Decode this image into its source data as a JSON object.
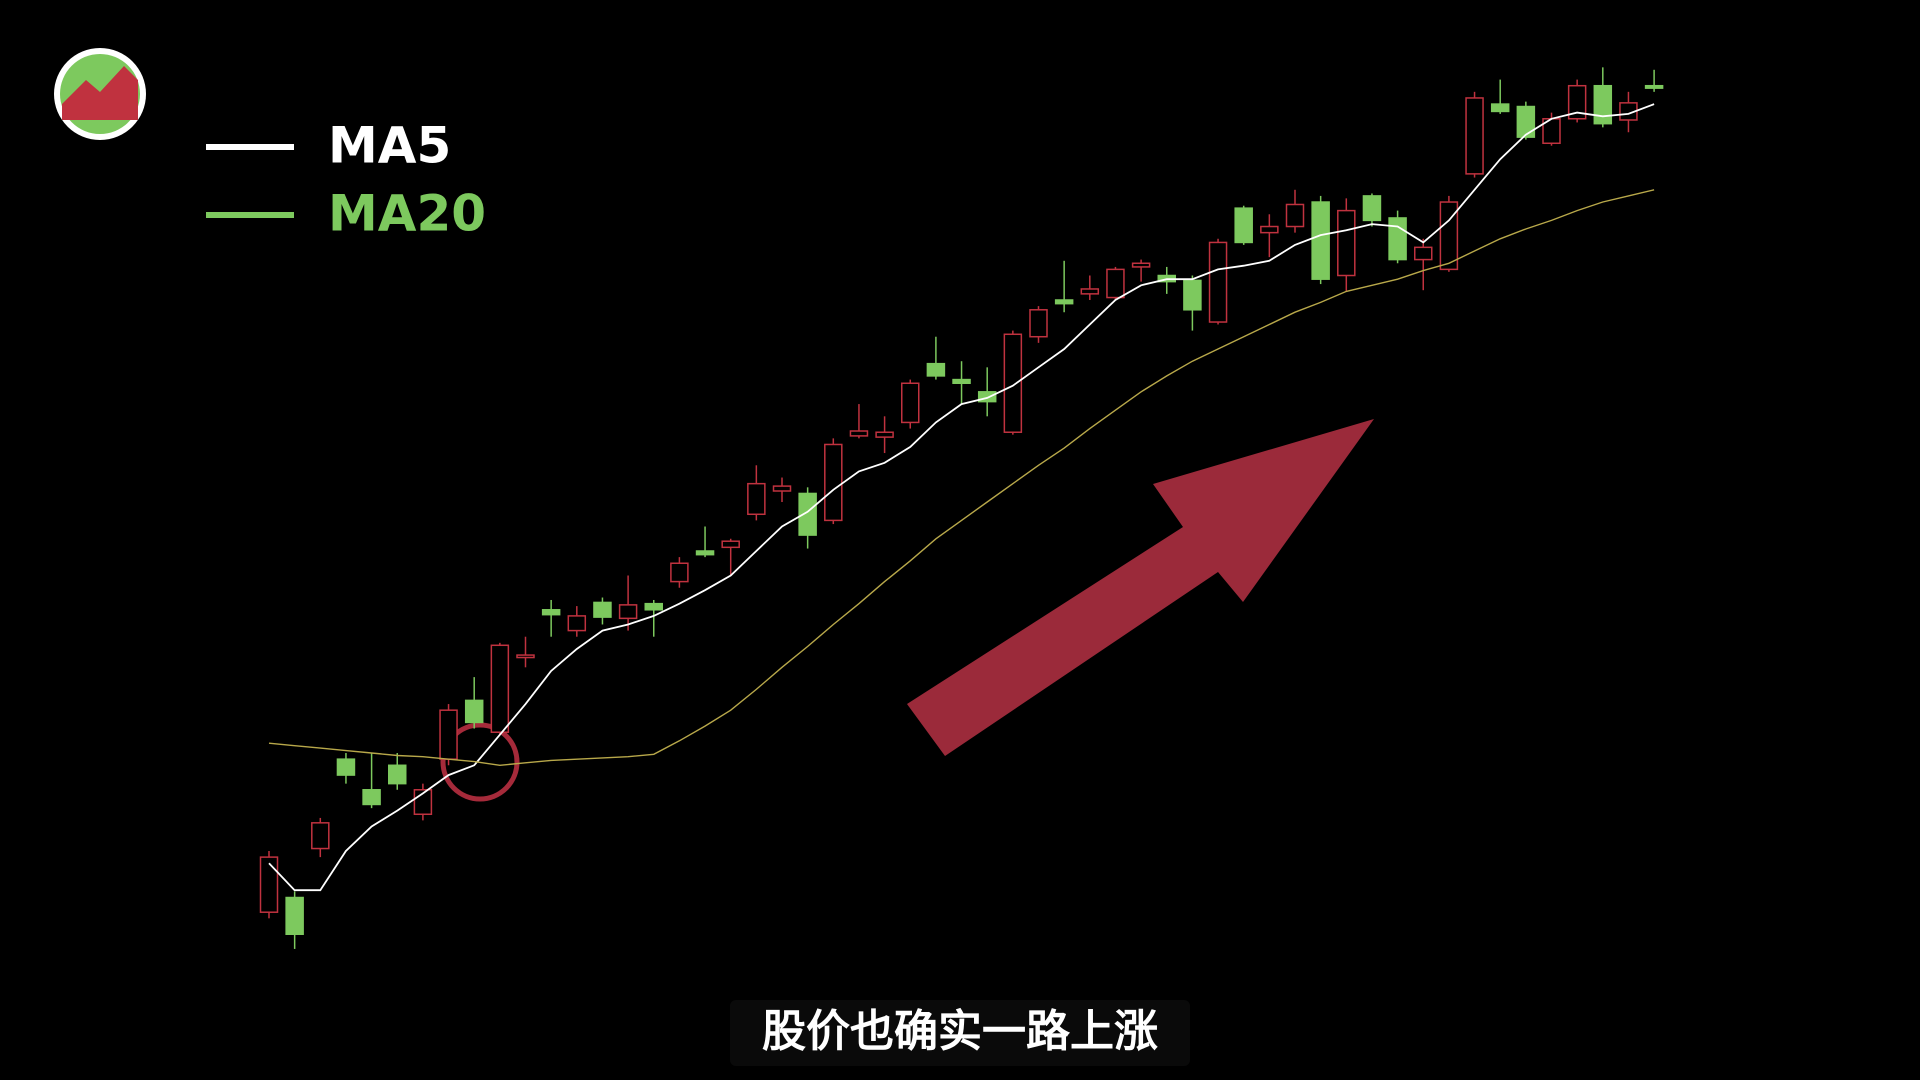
{
  "chart_data": {
    "type": "candlestick",
    "subtitle": "股价也确实一路上涨",
    "legend": "upper left",
    "up_color": "#c0323f",
    "down_color": "#7dc95e",
    "ylim": [
      0,
      90
    ],
    "open": [
      15.5,
      16.7,
      20.7,
      28,
      25.5,
      27.5,
      23.5,
      28,
      32.8,
      30.2,
      36.3,
      40.2,
      38.5,
      40.8,
      39.5,
      40.7,
      42.5,
      45,
      45.3,
      48,
      49.9,
      49.7,
      47.5,
      54.4,
      54.3,
      55.5,
      60.3,
      59,
      58,
      54.7,
      62.5,
      65.5,
      66,
      65.7,
      68.2,
      67.5,
      67.1,
      63.7,
      73,
      71,
      71.5,
      73.5,
      67.5,
      74,
      72.2,
      68.8,
      68,
      75.8,
      81.5,
      81.3,
      78.3,
      80.3,
      83,
      80.2,
      83
    ],
    "high": [
      20.5,
      17.2,
      23.2,
      28.5,
      28.5,
      28.5,
      26,
      32.5,
      34.7,
      37.5,
      38,
      41,
      40.5,
      41.2,
      43,
      41,
      44.5,
      47,
      46,
      52,
      51,
      50.2,
      54.2,
      57,
      56,
      59,
      62.5,
      60.5,
      60,
      63,
      65,
      68.7,
      67.5,
      68.2,
      68.8,
      68.2,
      67.5,
      70.5,
      73.2,
      72.5,
      74.5,
      74,
      73.8,
      74.2,
      72.8,
      70.5,
      74,
      82.5,
      83.5,
      81.7,
      80.8,
      83.5,
      84.5,
      82.5,
      84.3
    ],
    "low": [
      15,
      12.5,
      20,
      26,
      24,
      25.5,
      23,
      27.5,
      30.5,
      30,
      35.5,
      38,
      38,
      39,
      38.5,
      38,
      42,
      44.5,
      43,
      47.5,
      49,
      45.2,
      47.2,
      54.2,
      53,
      55,
      59,
      57,
      56,
      54.5,
      62,
      64.5,
      65.5,
      65.5,
      67,
      66,
      63,
      63.5,
      70,
      69,
      71,
      66.8,
      66.2,
      71.5,
      68.5,
      66.3,
      67.8,
      75.5,
      80.7,
      78.6,
      78.1,
      80,
      79.6,
      79.2,
      82.5
    ],
    "close": [
      20,
      13.7,
      22.8,
      26.7,
      24.3,
      26,
      25.5,
      32,
      31,
      37.3,
      36.5,
      39.8,
      39.7,
      39.6,
      40.6,
      40.2,
      44,
      44.7,
      45.8,
      50.5,
      50.3,
      46.3,
      53.7,
      54.8,
      54.7,
      58.7,
      59.3,
      58.7,
      57.2,
      62.7,
      64.7,
      65.2,
      66.4,
      68,
      68.5,
      67,
      64.7,
      70.2,
      70.2,
      71.5,
      73.3,
      67.2,
      72.8,
      72,
      68.8,
      69.8,
      73.5,
      82,
      80.9,
      78.8,
      80.3,
      83,
      79.9,
      81.6,
      82.8
    ],
    "series": [
      {
        "name": "MA5",
        "color": "#ffffff",
        "values": [
          19.5,
          17.3,
          17.3,
          20.5,
          22.5,
          23.8,
          25.2,
          26.7,
          27.5,
          30,
          32.5,
          35.2,
          37,
          38.5,
          39,
          39.7,
          40.7,
          41.8,
          43,
          45,
          47,
          48.2,
          50,
          51.5,
          52.2,
          53.5,
          55.5,
          57,
          57.5,
          58.5,
          60,
          61.5,
          63.5,
          65.5,
          66.7,
          67.2,
          67.2,
          68,
          68.3,
          68.7,
          70,
          70.8,
          71.2,
          71.7,
          71.5,
          70.2,
          72,
          74.5,
          77,
          79,
          80.3,
          80.8,
          80.5,
          80.7,
          81.5
        ]
      },
      {
        "name": "MA20",
        "color": "#7dc95e",
        "line_color": "#b8a84a",
        "values": [
          29.3,
          29.1,
          28.9,
          28.7,
          28.5,
          28.3,
          28.2,
          28,
          27.8,
          27.5,
          27.7,
          27.9,
          28,
          28.1,
          28.2,
          28.4,
          29.5,
          30.7,
          32,
          33.7,
          35.5,
          37.2,
          39,
          40.7,
          42.5,
          44.2,
          46,
          47.5,
          49,
          50.5,
          52,
          53.4,
          55,
          56.5,
          58,
          59.3,
          60.5,
          61.5,
          62.5,
          63.5,
          64.5,
          65.3,
          66.2,
          66.7,
          67.2,
          67.9,
          68.5,
          69.5,
          70.5,
          71.3,
          72,
          72.8,
          73.5,
          74,
          74.5
        ]
      }
    ]
  }
}
